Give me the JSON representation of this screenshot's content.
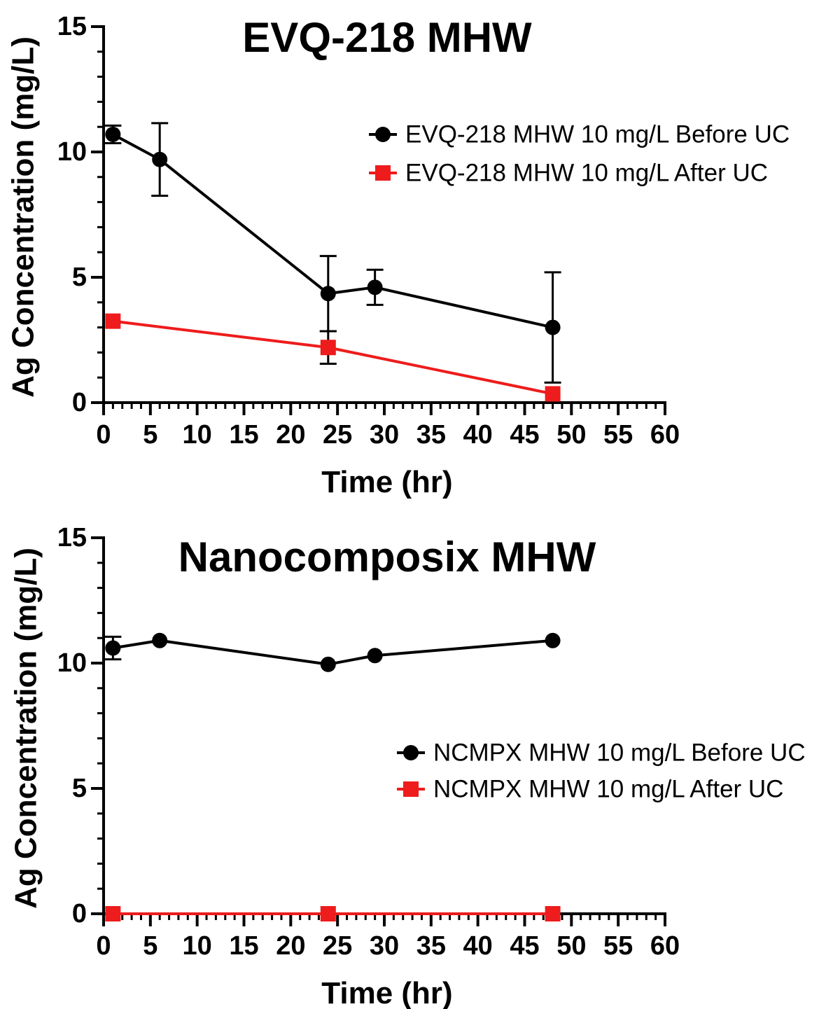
{
  "chart_data": [
    {
      "type": "line",
      "title": "EVQ-218 MHW",
      "xlabel": "Time (hr)",
      "ylabel": "Ag Concentration (mg/L)",
      "xlim": [
        0,
        60
      ],
      "ylim": [
        0,
        15
      ],
      "x_ticks": [
        0,
        5,
        10,
        15,
        20,
        25,
        30,
        35,
        40,
        45,
        50,
        55,
        60
      ],
      "y_ticks": [
        0,
        5,
        10,
        15
      ],
      "legend_position": "right",
      "series": [
        {
          "name": "EVQ-218 MHW 10 mg/L Before UC",
          "color": "#000000",
          "marker": "circle",
          "x": [
            1,
            6,
            24,
            29,
            48
          ],
          "y": [
            10.7,
            9.7,
            4.35,
            4.6,
            3.0
          ],
          "error": [
            0.35,
            1.45,
            1.5,
            0.7,
            2.2
          ]
        },
        {
          "name": "EVQ-218 MHW 10 mg/L After UC",
          "color": "#ee1c1c",
          "marker": "square",
          "x": [
            1,
            24,
            48
          ],
          "y": [
            3.25,
            2.2,
            0.35
          ],
          "error": [
            0,
            0.65,
            0
          ]
        }
      ]
    },
    {
      "type": "line",
      "title": "Nanocomposix MHW",
      "xlabel": "Time (hr)",
      "ylabel": "Ag Concentration (mg/L)",
      "xlim": [
        0,
        60
      ],
      "ylim": [
        0,
        15
      ],
      "x_ticks": [
        0,
        5,
        10,
        15,
        20,
        25,
        30,
        35,
        40,
        45,
        50,
        55,
        60
      ],
      "y_ticks": [
        0,
        5,
        10,
        15
      ],
      "legend_position": "right",
      "series": [
        {
          "name": "NCMPX MHW 10 mg/L Before UC",
          "color": "#000000",
          "marker": "circle",
          "x": [
            1,
            6,
            24,
            29,
            48
          ],
          "y": [
            10.6,
            10.9,
            9.95,
            10.3,
            10.9
          ],
          "error": [
            0.45,
            0,
            0,
            0,
            0
          ]
        },
        {
          "name": "NCMPX MHW 10 mg/L After UC",
          "color": "#ee1c1c",
          "marker": "square",
          "x": [
            1,
            24,
            48
          ],
          "y": [
            0,
            0,
            0
          ],
          "error": [
            0,
            0,
            0
          ]
        }
      ]
    }
  ]
}
